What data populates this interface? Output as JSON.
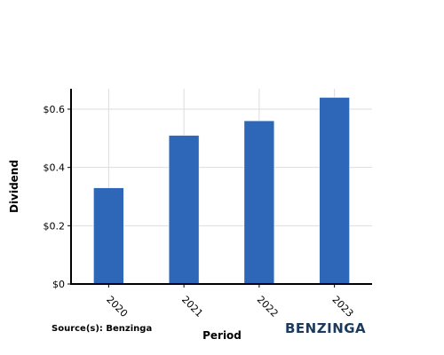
{
  "chart_data": {
    "type": "bar",
    "categories": [
      "2020",
      "2021",
      "2022",
      "2023"
    ],
    "values": [
      0.33,
      0.51,
      0.56,
      0.64
    ],
    "xlabel": "Period",
    "ylabel": "Dividend",
    "ylim": [
      0,
      0.67
    ],
    "yticks": [
      0,
      0.2,
      0.4,
      0.6
    ],
    "ytick_labels": [
      "$0",
      "$0.2",
      "$0.4",
      "$0.6"
    ],
    "grid": true,
    "bar_color": "#2e67b8"
  },
  "source_label": "Source(s): Benzinga",
  "brand": "BENZINGA"
}
